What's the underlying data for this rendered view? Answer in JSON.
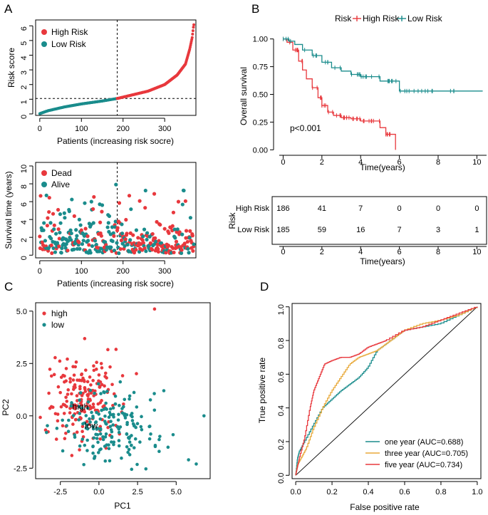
{
  "colors": {
    "red": "#E8383D",
    "teal": "#1A8C8C",
    "orange": "#E8A93A",
    "grey": "#000000"
  },
  "chart_data": [
    {
      "panel": "A",
      "id": "risk_score",
      "type": "scatter",
      "xlabel": "Patients (increasing risk socre)",
      "ylabel": "Risk score",
      "xticks": [
        0,
        100,
        200,
        300
      ],
      "yticks": [
        0,
        1,
        2,
        3,
        4,
        5,
        6
      ],
      "xlim": [
        -10,
        375
      ],
      "ylim": [
        -0.1,
        6.4
      ],
      "cutoff_index": 186,
      "cutoff_value": 1.05,
      "n_patients": 371,
      "legend": [
        {
          "label": "High Risk",
          "color": "#E8383D"
        },
        {
          "label": "Low Risk",
          "color": "#1A8C8C"
        }
      ],
      "curve_knots": [
        [
          0,
          0.02
        ],
        [
          20,
          0.22
        ],
        [
          60,
          0.48
        ],
        [
          100,
          0.68
        ],
        [
          150,
          0.88
        ],
        [
          186,
          1.05
        ],
        [
          220,
          1.28
        ],
        [
          260,
          1.55
        ],
        [
          300,
          2.0
        ],
        [
          330,
          2.65
        ],
        [
          350,
          3.4
        ],
        [
          360,
          4.4
        ],
        [
          366,
          5.2
        ],
        [
          369,
          5.9
        ],
        [
          371,
          6.25
        ]
      ]
    },
    {
      "panel": "A",
      "id": "survival_status",
      "type": "scatter",
      "xlabel": "Patients (increasing risk socre)",
      "ylabel": "Survival time (years)",
      "xticks": [
        0,
        100,
        200,
        300
      ],
      "yticks": [
        0,
        2,
        4,
        6,
        8,
        10
      ],
      "xlim": [
        -10,
        375
      ],
      "ylim": [
        -0.3,
        10.4
      ],
      "cutoff_index": 186,
      "legend": [
        {
          "label": "Dead",
          "color": "#E8383D"
        },
        {
          "label": "Alive",
          "color": "#1A8C8C"
        }
      ]
    },
    {
      "panel": "B",
      "id": "km",
      "type": "line",
      "xlabel": "Time(years)",
      "ylabel": "Overall survival",
      "xticks": [
        0,
        2,
        4,
        6,
        8,
        10
      ],
      "yticks": [
        "0.00",
        "0.25",
        "0.50",
        "0.75",
        "1.00"
      ],
      "xlim": [
        -0.2,
        10.5
      ],
      "ylim": [
        -0.03,
        1.03
      ],
      "legend_title": "Risk",
      "annotation": "p<0.001",
      "series": [
        {
          "name": "High Risk",
          "color": "#E8383D",
          "x": [
            0,
            0.2,
            0.5,
            0.8,
            1.0,
            1.2,
            1.5,
            1.8,
            2.0,
            2.3,
            2.6,
            3.0,
            3.5,
            4.0,
            4.5,
            5.0,
            5.3,
            5.8,
            5.8
          ],
          "y": [
            1.0,
            0.97,
            0.9,
            0.8,
            0.72,
            0.64,
            0.56,
            0.47,
            0.4,
            0.34,
            0.31,
            0.29,
            0.28,
            0.26,
            0.26,
            0.2,
            0.14,
            0.14,
            0.0
          ]
        },
        {
          "name": "Low Risk",
          "color": "#1A8C8C",
          "x": [
            0,
            0.3,
            0.6,
            1.0,
            1.5,
            2.0,
            2.5,
            3.0,
            3.5,
            4.0,
            4.8,
            5.0,
            6.0,
            6.0,
            10.3
          ],
          "y": [
            1.0,
            0.98,
            0.95,
            0.9,
            0.85,
            0.79,
            0.74,
            0.71,
            0.68,
            0.66,
            0.66,
            0.62,
            0.62,
            0.53,
            0.53
          ]
        }
      ]
    },
    {
      "panel": "B",
      "id": "risk_table",
      "type": "table",
      "xlabel": "Time(years)",
      "ylabel": "Risk",
      "xticks": [
        0,
        2,
        4,
        6,
        8,
        10
      ],
      "rows": [
        {
          "name": "High Risk",
          "color": "#E8383D",
          "values": [
            186,
            41,
            7,
            0,
            0,
            0
          ]
        },
        {
          "name": "Low Risk",
          "color": "#1A8C8C",
          "values": [
            185,
            59,
            16,
            7,
            3,
            1
          ]
        }
      ]
    },
    {
      "panel": "C",
      "id": "pca",
      "type": "scatter",
      "xlabel": "PC1",
      "ylabel": "PC2",
      "xticks": [
        "-2.5",
        "0.0",
        "2.5",
        "5.0"
      ],
      "yticks": [
        "-2.5",
        "0.0",
        "2.5",
        "5.0"
      ],
      "xlim": [
        -4.1,
        7.2
      ],
      "ylim": [
        -3.0,
        5.4
      ],
      "legend": [
        {
          "label": "high",
          "color": "#E8383D"
        },
        {
          "label": "low",
          "color": "#1A8C8C"
        }
      ],
      "group_labels": [
        {
          "text": "high",
          "x": -1.2,
          "y": 0.3
        },
        {
          "text": "low",
          "x": -0.5,
          "y": -0.6
        }
      ]
    },
    {
      "panel": "D",
      "id": "roc",
      "type": "line",
      "xlabel": "False positive rate",
      "ylabel": "True positive rate",
      "xticks": [
        "0.0",
        "0.2",
        "0.4",
        "0.6",
        "0.8",
        "1.0"
      ],
      "yticks": [
        "0.0",
        "0.2",
        "0.4",
        "0.6",
        "0.8",
        "1.0"
      ],
      "xlim": [
        -0.02,
        1.02
      ],
      "ylim": [
        -0.02,
        1.02
      ],
      "series": [
        {
          "name": "one year (AUC=0.688)",
          "color": "#1A8C8C",
          "x": [
            0,
            0.01,
            0.02,
            0.05,
            0.1,
            0.15,
            0.2,
            0.25,
            0.3,
            0.35,
            0.4,
            0.45,
            0.5,
            0.55,
            0.6,
            0.7,
            0.8,
            0.9,
            1.0
          ],
          "y": [
            0,
            0.1,
            0.14,
            0.2,
            0.3,
            0.4,
            0.45,
            0.5,
            0.54,
            0.58,
            0.64,
            0.74,
            0.78,
            0.82,
            0.86,
            0.88,
            0.9,
            0.95,
            1.0
          ]
        },
        {
          "name": "three year (AUC=0.705)",
          "color": "#E8A93A",
          "x": [
            0,
            0.01,
            0.03,
            0.06,
            0.1,
            0.15,
            0.2,
            0.25,
            0.3,
            0.35,
            0.4,
            0.45,
            0.5,
            0.55,
            0.6,
            0.7,
            0.8,
            0.9,
            1.0
          ],
          "y": [
            0,
            0.06,
            0.1,
            0.16,
            0.28,
            0.4,
            0.5,
            0.58,
            0.66,
            0.7,
            0.72,
            0.74,
            0.78,
            0.82,
            0.86,
            0.9,
            0.92,
            0.95,
            1.0
          ]
        },
        {
          "name": "five year (AUC=0.734)",
          "color": "#E8383D",
          "x": [
            0,
            0.01,
            0.02,
            0.05,
            0.08,
            0.1,
            0.13,
            0.16,
            0.2,
            0.25,
            0.3,
            0.35,
            0.4,
            0.45,
            0.5,
            0.6,
            0.7,
            0.8,
            0.9,
            1.0
          ],
          "y": [
            0,
            0.05,
            0.1,
            0.22,
            0.4,
            0.5,
            0.58,
            0.66,
            0.68,
            0.7,
            0.7,
            0.72,
            0.76,
            0.78,
            0.8,
            0.86,
            0.88,
            0.92,
            0.96,
            1.0
          ]
        }
      ]
    }
  ],
  "panel_labels": {
    "a": "A",
    "b": "B",
    "c": "C",
    "d": "D"
  }
}
